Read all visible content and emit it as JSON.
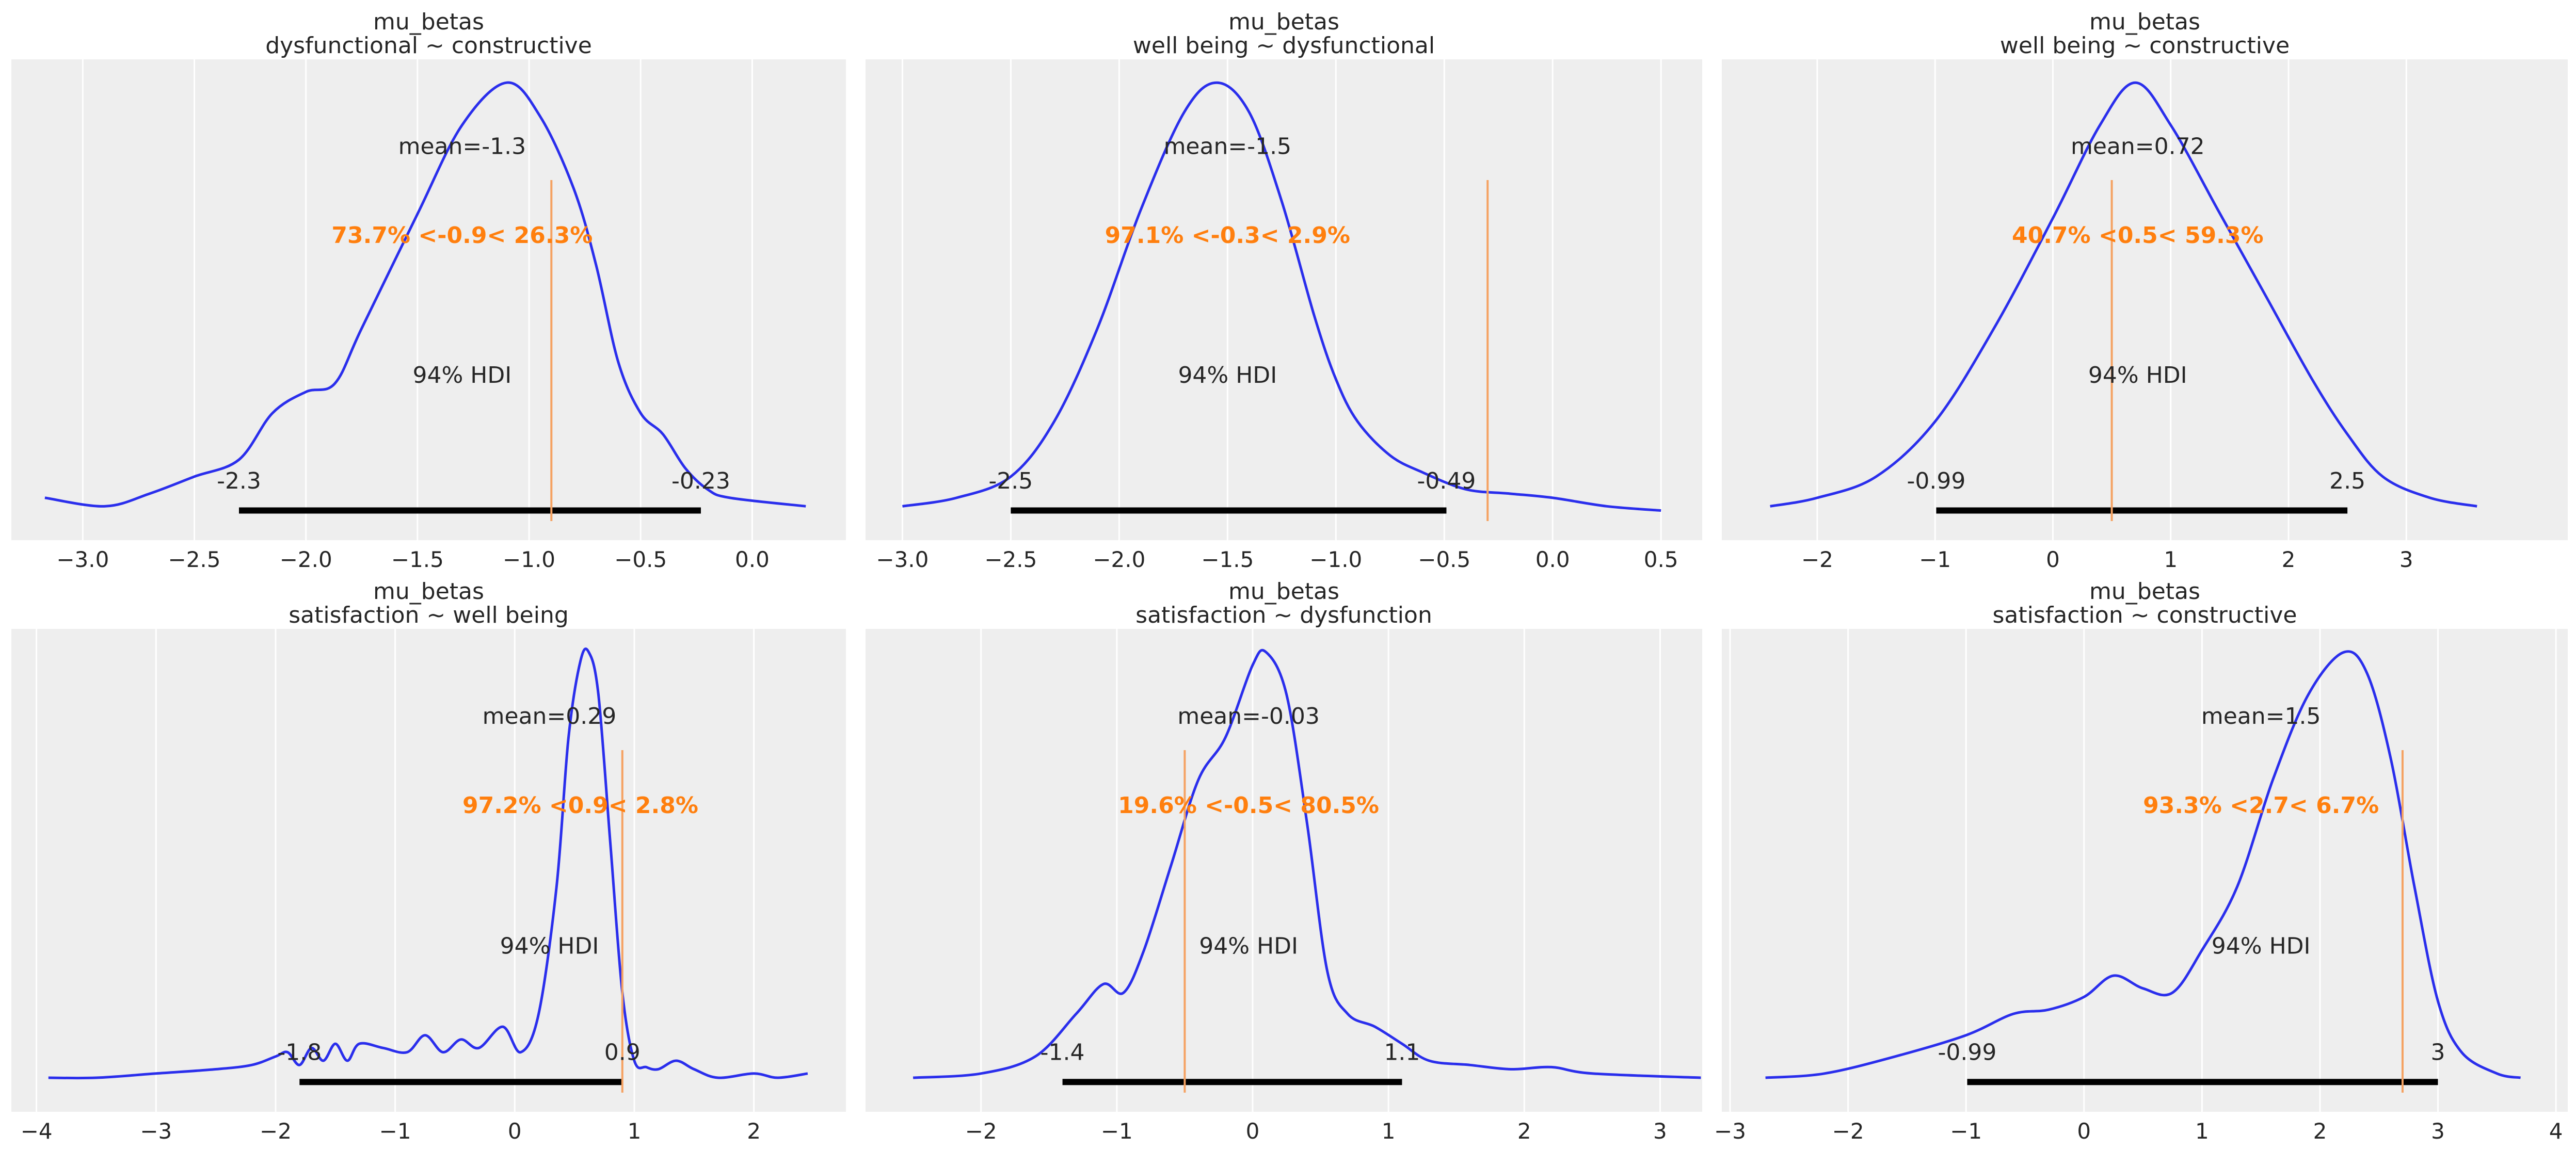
{
  "colors": {
    "background": "#eeeeee",
    "grid": "#ffffff",
    "curve": "#2a2eec",
    "reference": "#ff7f0e",
    "reference_line": "#f5a262",
    "hdi": "#000000"
  },
  "chart_data": [
    {
      "type": "line",
      "title": "mu_betas",
      "subtitle": "dysfunctional ~ constructive",
      "xlim": [
        -3.32,
        0.42
      ],
      "ylim": [
        -0.08,
        1.055
      ],
      "xticks": [
        -3.0,
        -2.5,
        -2.0,
        -1.5,
        -1.0,
        -0.5,
        0.0
      ],
      "xtick_labels": [
        "−3.0",
        "−2.5",
        "−2.0",
        "−1.5",
        "−1.0",
        "−0.5",
        "0.0"
      ],
      "mean": -1.3,
      "mean_label": "mean=-1.3",
      "hdi": [
        -2.3,
        -0.23
      ],
      "hdi_labels": [
        "-2.3",
        "-0.23"
      ],
      "hdi_text": "94% HDI",
      "ref_val": -0.9,
      "ref_label": "73.7% <-0.9< 26.3%",
      "density": [
        [
          -3.17,
          0.02
        ],
        [
          -2.9,
          0.0
        ],
        [
          -2.7,
          0.03
        ],
        [
          -2.5,
          0.07
        ],
        [
          -2.3,
          0.11
        ],
        [
          -2.15,
          0.22
        ],
        [
          -2.0,
          0.27
        ],
        [
          -1.87,
          0.29
        ],
        [
          -1.75,
          0.42
        ],
        [
          -1.5,
          0.69
        ],
        [
          -1.3,
          0.9
        ],
        [
          -1.1,
          1.0
        ],
        [
          -0.95,
          0.92
        ],
        [
          -0.8,
          0.75
        ],
        [
          -0.7,
          0.57
        ],
        [
          -0.6,
          0.34
        ],
        [
          -0.5,
          0.22
        ],
        [
          -0.4,
          0.17
        ],
        [
          -0.3,
          0.09
        ],
        [
          -0.2,
          0.04
        ],
        [
          -0.1,
          0.02
        ],
        [
          0.24,
          0.0
        ]
      ]
    },
    {
      "type": "line",
      "title": "mu_betas",
      "subtitle": "well being ~ dysfunctional",
      "xlim": [
        -3.17,
        0.69
      ],
      "ylim": [
        -0.08,
        1.055
      ],
      "xticks": [
        -3.0,
        -2.5,
        -2.0,
        -1.5,
        -1.0,
        -0.5,
        0.0,
        0.5
      ],
      "xtick_labels": [
        "−3.0",
        "−2.5",
        "−2.0",
        "−1.5",
        "−1.0",
        "−0.5",
        "0.0",
        "0.5"
      ],
      "mean": -1.5,
      "mean_label": "mean=-1.5",
      "hdi": [
        -2.5,
        -0.49
      ],
      "hdi_labels": [
        "-2.5",
        "-0.49"
      ],
      "hdi_text": "94% HDI",
      "ref_val": -0.3,
      "ref_label": "97.1% <-0.3< 2.9%",
      "density": [
        [
          -3.0,
          0.0
        ],
        [
          -2.75,
          0.02
        ],
        [
          -2.5,
          0.07
        ],
        [
          -2.3,
          0.2
        ],
        [
          -2.1,
          0.42
        ],
        [
          -1.9,
          0.7
        ],
        [
          -1.7,
          0.93
        ],
        [
          -1.55,
          1.0
        ],
        [
          -1.4,
          0.93
        ],
        [
          -1.25,
          0.72
        ],
        [
          -1.1,
          0.45
        ],
        [
          -1.0,
          0.3
        ],
        [
          -0.9,
          0.2
        ],
        [
          -0.75,
          0.12
        ],
        [
          -0.6,
          0.08
        ],
        [
          -0.4,
          0.04
        ],
        [
          -0.2,
          0.03
        ],
        [
          0.0,
          0.02
        ],
        [
          0.25,
          0.0
        ],
        [
          0.5,
          -0.01
        ]
      ]
    },
    {
      "type": "line",
      "title": "mu_betas",
      "subtitle": "well being ~ constructive",
      "xlim": [
        -2.81,
        4.37
      ],
      "ylim": [
        -0.08,
        1.055
      ],
      "xticks": [
        -2,
        -1,
        0,
        1,
        2,
        3
      ],
      "xtick_labels": [
        "−2",
        "−1",
        "0",
        "1",
        "2",
        "3"
      ],
      "mean": 0.72,
      "mean_label": "mean=0.72",
      "hdi": [
        -0.99,
        2.5
      ],
      "hdi_labels": [
        "-0.99",
        "2.5"
      ],
      "hdi_text": "94% HDI",
      "ref_val": 0.5,
      "ref_label": "40.7% <0.5< 59.3%",
      "density": [
        [
          -2.4,
          0.0
        ],
        [
          -2.0,
          0.02
        ],
        [
          -1.5,
          0.07
        ],
        [
          -1.0,
          0.2
        ],
        [
          -0.5,
          0.42
        ],
        [
          0.0,
          0.68
        ],
        [
          0.4,
          0.9
        ],
        [
          0.7,
          1.0
        ],
        [
          1.0,
          0.9
        ],
        [
          1.4,
          0.7
        ],
        [
          1.8,
          0.5
        ],
        [
          2.2,
          0.3
        ],
        [
          2.5,
          0.17
        ],
        [
          2.8,
          0.07
        ],
        [
          3.2,
          0.02
        ],
        [
          3.6,
          0.0
        ]
      ]
    },
    {
      "type": "line",
      "title": "mu_betas",
      "subtitle": "satisfaction ~ well being",
      "xlim": [
        -4.21,
        2.77
      ],
      "ylim": [
        -0.08,
        1.055
      ],
      "xticks": [
        -4,
        -3,
        -2,
        -1,
        0,
        1,
        2
      ],
      "xtick_labels": [
        "−4",
        "−3",
        "−2",
        "−1",
        "0",
        "1",
        "2"
      ],
      "mean": 0.29,
      "mean_label": "mean=0.29",
      "hdi": [
        -1.8,
        0.9
      ],
      "hdi_labels": [
        "-1.8",
        "0.9"
      ],
      "hdi_text": "94% HDI",
      "ref_val": 0.9,
      "ref_label": "97.2% <0.9< 2.8%",
      "density": [
        [
          -3.9,
          0.0
        ],
        [
          -3.5,
          0.0
        ],
        [
          -3.0,
          0.01
        ],
        [
          -2.5,
          0.02
        ],
        [
          -2.2,
          0.03
        ],
        [
          -2.0,
          0.05
        ],
        [
          -1.9,
          0.06
        ],
        [
          -1.8,
          0.03
        ],
        [
          -1.7,
          0.07
        ],
        [
          -1.6,
          0.04
        ],
        [
          -1.5,
          0.08
        ],
        [
          -1.4,
          0.04
        ],
        [
          -1.3,
          0.08
        ],
        [
          -1.1,
          0.07
        ],
        [
          -0.9,
          0.06
        ],
        [
          -0.75,
          0.1
        ],
        [
          -0.6,
          0.06
        ],
        [
          -0.45,
          0.09
        ],
        [
          -0.3,
          0.07
        ],
        [
          -0.1,
          0.12
        ],
        [
          0.05,
          0.06
        ],
        [
          0.2,
          0.15
        ],
        [
          0.35,
          0.45
        ],
        [
          0.45,
          0.8
        ],
        [
          0.55,
          0.98
        ],
        [
          0.62,
          1.0
        ],
        [
          0.7,
          0.9
        ],
        [
          0.8,
          0.55
        ],
        [
          0.9,
          0.2
        ],
        [
          1.0,
          0.04
        ],
        [
          1.1,
          0.025
        ],
        [
          1.2,
          0.02
        ],
        [
          1.35,
          0.04
        ],
        [
          1.5,
          0.02
        ],
        [
          1.7,
          0.0
        ],
        [
          2.0,
          0.01
        ],
        [
          2.2,
          0.0
        ],
        [
          2.45,
          0.01
        ]
      ]
    },
    {
      "type": "line",
      "title": "mu_betas",
      "subtitle": "satisfaction ~ dysfunction",
      "xlim": [
        -2.85,
        3.31
      ],
      "ylim": [
        -0.08,
        1.055
      ],
      "xticks": [
        -2,
        -1,
        0,
        1,
        2,
        3
      ],
      "xtick_labels": [
        "−2",
        "−1",
        "0",
        "1",
        "2",
        "3"
      ],
      "mean": -0.03,
      "mean_label": "mean=-0.03",
      "hdi": [
        -1.4,
        1.1
      ],
      "hdi_labels": [
        "-1.4",
        "1.1"
      ],
      "hdi_text": "94% HDI",
      "ref_val": -0.5,
      "ref_label": "19.6% <-0.5< 80.5%",
      "density": [
        [
          -2.5,
          0.0
        ],
        [
          -2.0,
          0.01
        ],
        [
          -1.6,
          0.05
        ],
        [
          -1.3,
          0.15
        ],
        [
          -1.1,
          0.22
        ],
        [
          -0.95,
          0.2
        ],
        [
          -0.8,
          0.3
        ],
        [
          -0.6,
          0.5
        ],
        [
          -0.4,
          0.7
        ],
        [
          -0.2,
          0.8
        ],
        [
          0.0,
          0.97
        ],
        [
          0.1,
          1.0
        ],
        [
          0.25,
          0.9
        ],
        [
          0.4,
          0.6
        ],
        [
          0.55,
          0.25
        ],
        [
          0.7,
          0.15
        ],
        [
          0.9,
          0.12
        ],
        [
          1.1,
          0.08
        ],
        [
          1.3,
          0.04
        ],
        [
          1.6,
          0.03
        ],
        [
          1.9,
          0.02
        ],
        [
          2.2,
          0.025
        ],
        [
          2.5,
          0.01
        ],
        [
          3.3,
          0.0
        ]
      ]
    },
    {
      "type": "line",
      "title": "mu_betas",
      "subtitle": "satisfaction ~ constructive",
      "xlim": [
        -3.07,
        4.1
      ],
      "ylim": [
        -0.08,
        1.055
      ],
      "xticks": [
        -3,
        -2,
        -1,
        0,
        1,
        2,
        3,
        4
      ],
      "xtick_labels": [
        "−3",
        "−2",
        "−1",
        "0",
        "1",
        "2",
        "3",
        "4"
      ],
      "mean": 1.5,
      "mean_label": "mean=1.5",
      "hdi": [
        -0.99,
        3
      ],
      "hdi_labels": [
        "-0.99",
        "3"
      ],
      "hdi_text": "94% HDI",
      "ref_val": 2.7,
      "ref_label": "93.3% <2.7< 6.7%",
      "density": [
        [
          -2.7,
          0.0
        ],
        [
          -2.2,
          0.01
        ],
        [
          -1.6,
          0.05
        ],
        [
          -1.0,
          0.1
        ],
        [
          -0.6,
          0.15
        ],
        [
          -0.3,
          0.16
        ],
        [
          0.0,
          0.19
        ],
        [
          0.25,
          0.24
        ],
        [
          0.5,
          0.21
        ],
        [
          0.75,
          0.2
        ],
        [
          1.0,
          0.3
        ],
        [
          1.3,
          0.45
        ],
        [
          1.6,
          0.7
        ],
        [
          1.9,
          0.9
        ],
        [
          2.2,
          1.0
        ],
        [
          2.4,
          0.95
        ],
        [
          2.6,
          0.75
        ],
        [
          2.8,
          0.45
        ],
        [
          3.0,
          0.18
        ],
        [
          3.2,
          0.06
        ],
        [
          3.5,
          0.01
        ],
        [
          3.7,
          0.0
        ]
      ]
    }
  ]
}
